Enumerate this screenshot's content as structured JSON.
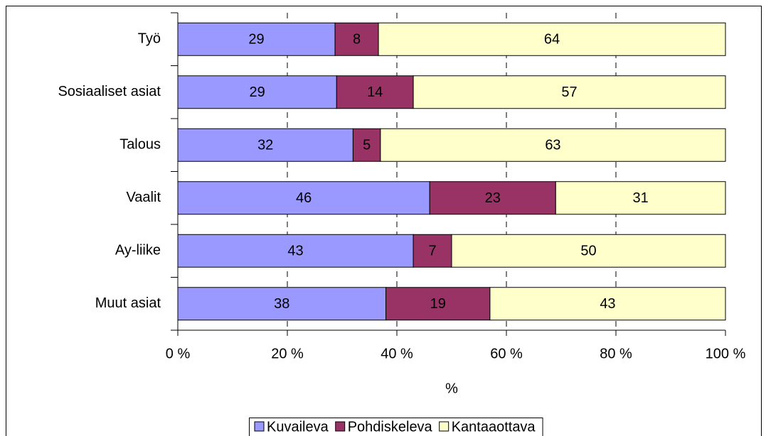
{
  "chart_data": {
    "type": "bar",
    "orientation": "horizontal",
    "stacked": "percent",
    "categories": [
      "Työ",
      "Sosiaaliset asiat",
      "Talous",
      "Vaalit",
      "Ay-liike",
      "Muut asiat"
    ],
    "series": [
      {
        "name": "Kuvaileva",
        "color": "#9999ff",
        "values": [
          29,
          29,
          32,
          46,
          43,
          38
        ]
      },
      {
        "name": "Pohdiskeleva",
        "color": "#993366",
        "values": [
          8,
          14,
          5,
          23,
          7,
          19
        ]
      },
      {
        "name": "Kantaaottava",
        "color": "#ffffcc",
        "values": [
          64,
          57,
          63,
          31,
          50,
          43
        ]
      }
    ],
    "x_label": "%",
    "xlim": [
      0,
      100
    ],
    "xticks": [
      {
        "value": 0,
        "label": "0 %"
      },
      {
        "value": 20,
        "label": "20 %"
      },
      {
        "value": 40,
        "label": "40 %"
      },
      {
        "value": 60,
        "label": "60 %"
      },
      {
        "value": 80,
        "label": "80 %"
      },
      {
        "value": 100,
        "label": "100 %"
      }
    ],
    "grid": true,
    "legend": "bottom"
  }
}
